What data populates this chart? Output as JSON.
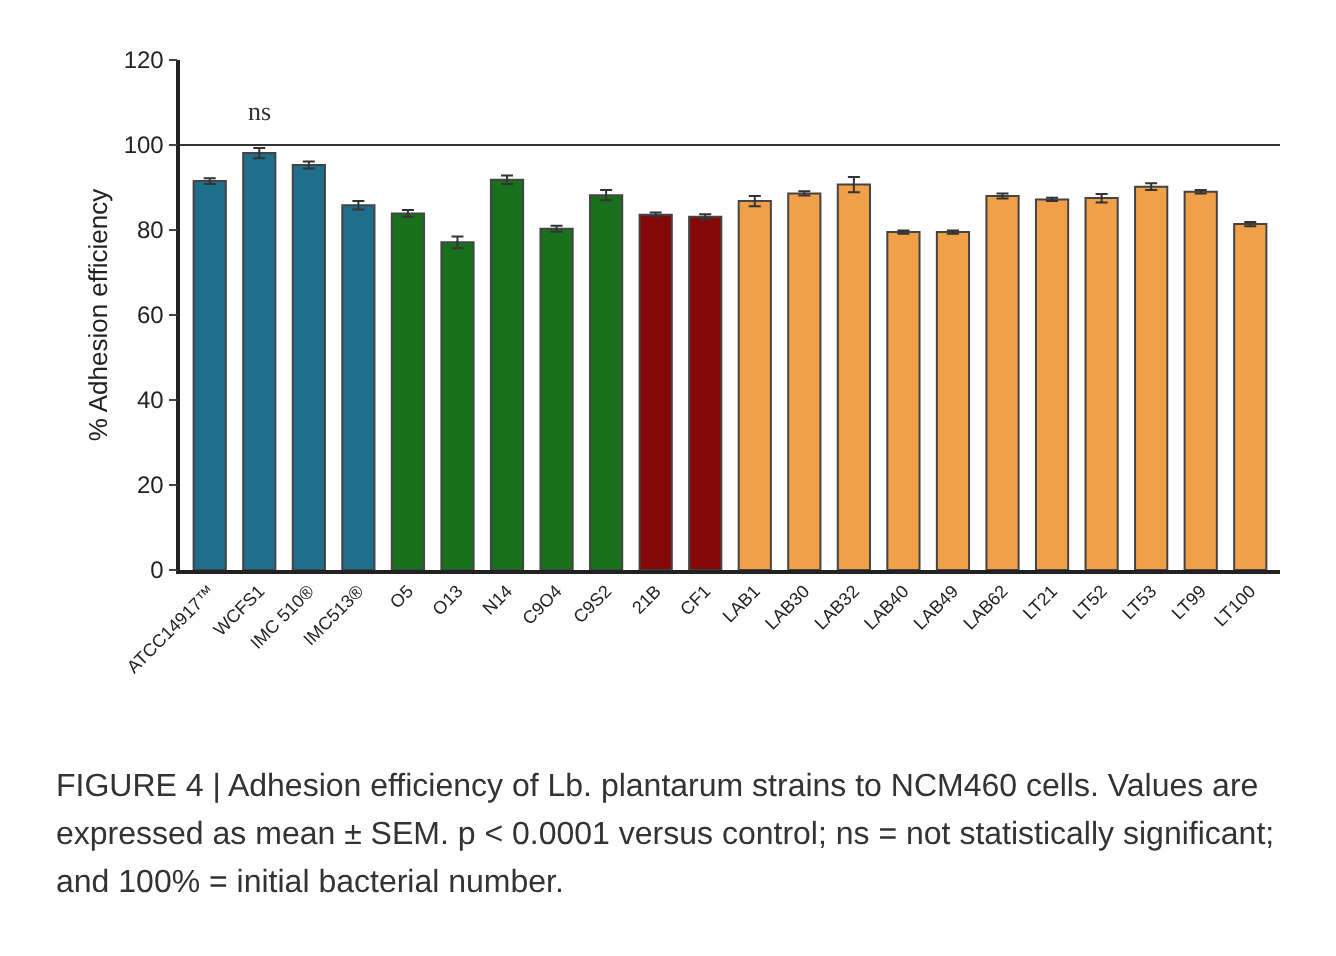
{
  "chart_data": {
    "type": "bar",
    "ylabel": "% Adhesion efficiency",
    "categories": [
      "ATCC14917™",
      "WCFS1",
      "IMC 510®",
      "IMC513®",
      "O5",
      "O13",
      "N14",
      "C9O4",
      "C9S2",
      "21B",
      "CF1",
      "LAB1",
      "LAB30",
      "LAB32",
      "LAB40",
      "LAB49",
      "LAB62",
      "LT21",
      "LT52",
      "LT53",
      "LT99",
      "LT100"
    ],
    "values": [
      91.5,
      98.1,
      95.3,
      85.8,
      83.9,
      77.1,
      91.8,
      80.3,
      88.2,
      83.6,
      83.1,
      86.8,
      88.6,
      90.7,
      79.5,
      79.5,
      88.0,
      87.2,
      87.5,
      90.2,
      89.0,
      81.4
    ],
    "errors": [
      0.7,
      1.2,
      0.8,
      1.0,
      0.8,
      1.4,
      1.0,
      0.7,
      1.2,
      0.5,
      0.6,
      1.2,
      0.5,
      1.8,
      0.4,
      0.4,
      0.6,
      0.4,
      1.0,
      0.8,
      0.4,
      0.5
    ],
    "colors": [
      "#1f6e8c",
      "#1f6e8c",
      "#1f6e8c",
      "#1f6e8c",
      "#19701c",
      "#19701c",
      "#19701c",
      "#19701c",
      "#19701c",
      "#850808",
      "#850808",
      "#f0a048",
      "#f0a048",
      "#f0a048",
      "#f0a048",
      "#f0a048",
      "#f0a048",
      "#f0a048",
      "#f0a048",
      "#f0a048",
      "#f0a048",
      "#f0a048"
    ],
    "ylim": [
      0,
      120
    ],
    "yticks": [
      0,
      20,
      40,
      60,
      80,
      100,
      120
    ],
    "grid": false,
    "ref_lines": [
      {
        "axis": "y",
        "value": 100,
        "color": "#333333"
      }
    ],
    "annotations": [
      {
        "text": "ns",
        "x": "WCFS1",
        "y": 98.1
      },
      "FIGURE 4 | Adhesion efficiency of Lb. plantarum strains to NCM460 cells. Values are expressed as mean ± SEM. p < 0.0001 versus control; ns = not statistically significant; and 100% = initial bacterial number."
    ]
  }
}
